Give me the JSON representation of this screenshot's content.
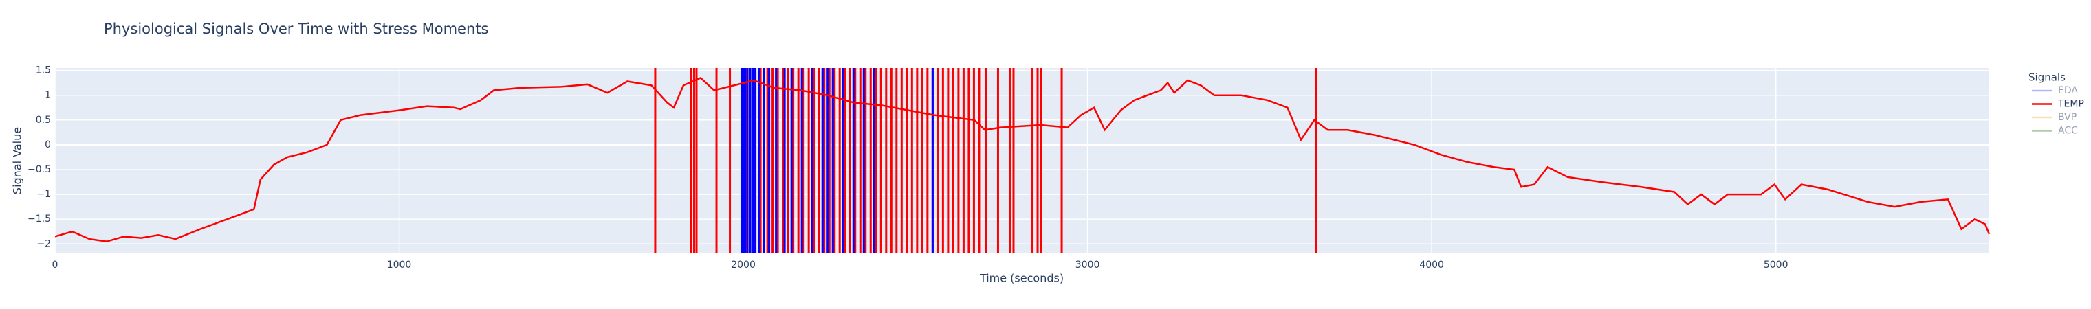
{
  "chart_data": {
    "type": "line",
    "title": "Physiological Signals Over Time with Stress Moments",
    "xlabel": "Time (seconds)",
    "ylabel": "Signal Value",
    "legend_title": "Signals",
    "legend_position": "right",
    "grid": true,
    "xlim": [
      0,
      5620
    ],
    "xticks": [
      0,
      1000,
      2000,
      3000,
      4000,
      5000
    ],
    "ylim": [
      -2.19,
      1.55
    ],
    "yticks": [
      {
        "value": -2,
        "label": "−2"
      },
      {
        "value": -1.5,
        "label": "−1.5"
      },
      {
        "value": -1,
        "label": "−1"
      },
      {
        "value": -0.5,
        "label": "−0.5"
      },
      0,
      0.5,
      1,
      1.5
    ],
    "x": [
      0,
      50,
      100,
      150,
      200,
      250,
      300,
      350,
      422,
      540,
      578,
      597,
      636,
      675,
      733,
      790,
      830,
      888,
      1004,
      1081,
      1159,
      1178,
      1237,
      1275,
      1353,
      1469,
      1547,
      1605,
      1663,
      1733,
      1779,
      1798,
      1826,
      1876,
      1915,
      1973,
      2031,
      2089,
      2167,
      2244,
      2322,
      2399,
      2554,
      2671,
      2702,
      2748,
      2864,
      2942,
      2981,
      3019,
      3050,
      3097,
      3136,
      3174,
      3213,
      3233,
      3252,
      3291,
      3329,
      3368,
      3446,
      3523,
      3581,
      3620,
      3659,
      3698,
      3756,
      3833,
      3950,
      4027,
      4105,
      4182,
      4240,
      4260,
      4298,
      4337,
      4395,
      4492,
      4609,
      4705,
      4744,
      4783,
      4822,
      4860,
      4957,
      4996,
      5027,
      5074,
      5151,
      5267,
      5345,
      5422,
      5500,
      5539,
      5578,
      5608,
      5620
    ],
    "series": [
      {
        "name": "EDA",
        "color": "#636efa",
        "visible": "legendonly"
      },
      {
        "name": "TEMP",
        "color": "#ff0000",
        "visible": true,
        "values": [
          -1.85,
          -1.75,
          -1.9,
          -1.95,
          -1.85,
          -1.88,
          -1.82,
          -1.9,
          -1.7,
          -1.4,
          -1.3,
          -0.7,
          -0.4,
          -0.25,
          -0.15,
          0.0,
          0.5,
          0.6,
          0.7,
          0.78,
          0.75,
          0.72,
          0.9,
          1.1,
          1.15,
          1.17,
          1.22,
          1.05,
          1.28,
          1.2,
          0.85,
          0.75,
          1.2,
          1.35,
          1.1,
          1.2,
          1.3,
          1.15,
          1.1,
          1.0,
          0.85,
          0.8,
          0.6,
          0.5,
          0.3,
          0.35,
          0.4,
          0.35,
          0.6,
          0.75,
          0.3,
          0.7,
          0.9,
          1.0,
          1.1,
          1.25,
          1.05,
          1.3,
          1.2,
          1.0,
          1.0,
          0.9,
          0.75,
          0.1,
          0.5,
          0.3,
          0.3,
          0.2,
          0.0,
          -0.2,
          -0.35,
          -0.45,
          -0.5,
          -0.85,
          -0.8,
          -0.45,
          -0.65,
          -0.75,
          -0.85,
          -0.95,
          -1.2,
          -1.0,
          -1.2,
          -1.0,
          -1.0,
          -0.8,
          -1.1,
          -0.8,
          -0.9,
          -1.15,
          -1.25,
          -1.15,
          -1.1,
          -1.7,
          -1.5,
          -1.6,
          -1.8
        ]
      },
      {
        "name": "BVP",
        "color": "#f5c26b",
        "visible": "legendonly"
      },
      {
        "name": "ACC",
        "color": "#5b9a5b",
        "visible": "legendonly"
      }
    ],
    "stress_moments": [
      {
        "color": "#ff0000",
        "x": [
          1744,
          1849,
          1857,
          1864,
          1922,
          1961,
          2010,
          2030,
          2050,
          2070,
          2085,
          2100,
          2115,
          2130,
          2145,
          2160,
          2175,
          2190,
          2205,
          2220,
          2235,
          2250,
          2265,
          2280,
          2295,
          2310,
          2325,
          2340,
          2355,
          2370,
          2385,
          2400,
          2415,
          2430,
          2445,
          2460,
          2475,
          2490,
          2505,
          2520,
          2535,
          2550,
          2565,
          2580,
          2595,
          2610,
          2625,
          2640,
          2655,
          2670,
          2685,
          2705,
          2740,
          2775,
          2785,
          2840,
          2855,
          2865,
          2925,
          3665
        ]
      },
      {
        "color": "#0000ff",
        "x": [
          1995,
          2000,
          2005,
          2012,
          2020,
          2028,
          2035,
          2045,
          2060,
          2075,
          2095,
          2120,
          2140,
          2170,
          2200,
          2230,
          2245,
          2260,
          2290,
          2320,
          2350,
          2380,
          2550
        ]
      }
    ]
  }
}
